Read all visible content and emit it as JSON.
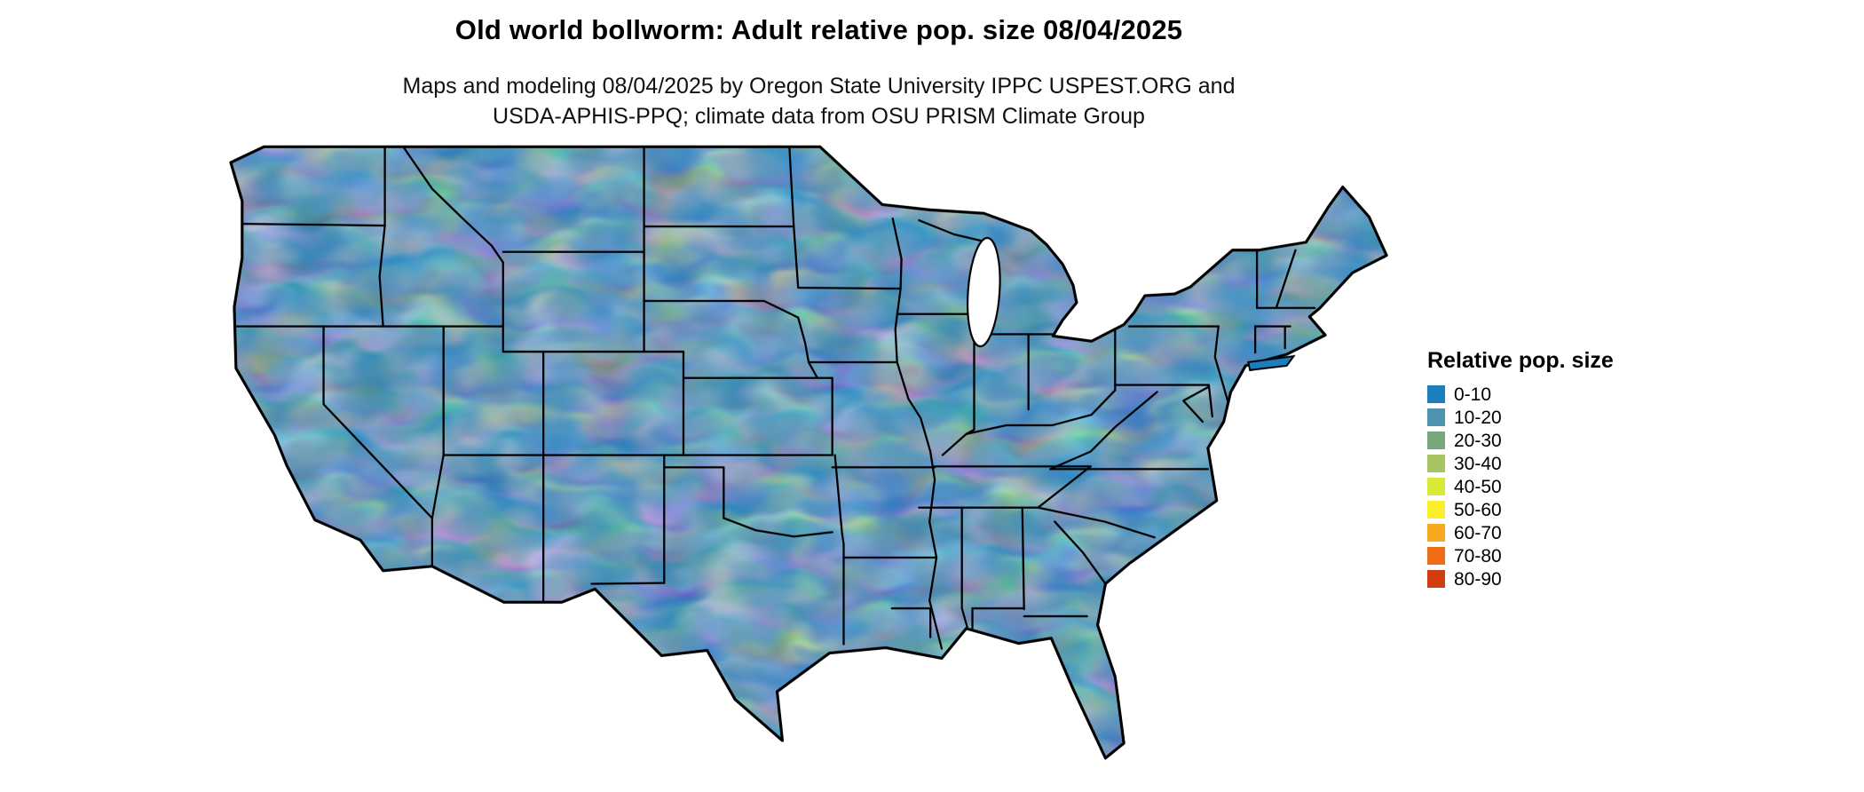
{
  "header": {
    "title": "Old world bollworm: Adult relative pop. size 08/04/2025",
    "subtitle_line1": "Maps and modeling 08/04/2025 by Oregon State University IPPC USPEST.ORG and",
    "subtitle_line2": "USDA-APHIS-PPQ; climate data from OSU PRISM Climate Group"
  },
  "legend": {
    "title": "Relative pop. size",
    "entries": [
      {
        "label": "0-10",
        "color": "#1d7ebe"
      },
      {
        "label": "10-20",
        "color": "#4d93ad"
      },
      {
        "label": "20-30",
        "color": "#78a77f"
      },
      {
        "label": "30-40",
        "color": "#a6c361"
      },
      {
        "label": "40-50",
        "color": "#d7e837"
      },
      {
        "label": "50-60",
        "color": "#fced2b"
      },
      {
        "label": "60-70",
        "color": "#f7a81e"
      },
      {
        "label": "70-80",
        "color": "#ed6e17"
      },
      {
        "label": "80-90",
        "color": "#d13c10"
      }
    ]
  },
  "map": {
    "base_color": "#1d7ebe"
  }
}
